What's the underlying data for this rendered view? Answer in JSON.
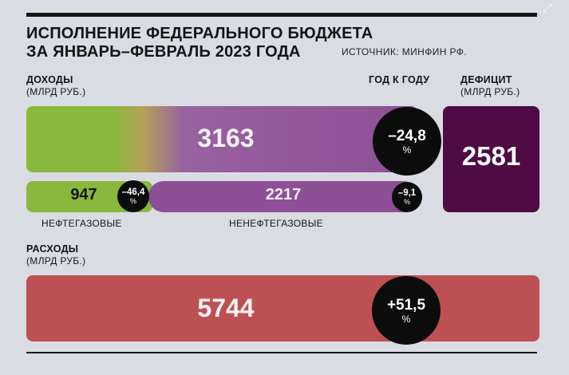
{
  "header": {
    "title_line1": "ИСПОЛНЕНИЕ ФЕДЕРАЛЬНОГО БЮДЖЕТА",
    "title_line2": "ЗА ЯНВАРЬ–ФЕВРАЛЬ 2023 ГОДА",
    "source": "ИСТОЧНИК:  МИНФИН РФ."
  },
  "labels": {
    "income_title": "ДОХОДЫ",
    "income_unit": "(МЛРД РУБ.)",
    "yoy": "ГОД К ГОДУ",
    "deficit_title": "ДЕФИЦИТ",
    "deficit_unit": "(МЛРД РУБ.)",
    "expenses_title": "РАСХОДЫ",
    "expenses_unit": "(МЛРД РУБ.)",
    "oil_gas": "НЕФТЕГАЗОВЫЕ",
    "non_oil_gas": "НЕНЕФТЕГАЗОВЫЕ",
    "percent_sign": "%"
  },
  "chart_data": {
    "type": "bar",
    "unit": "МЛРД РУБ.",
    "income": {
      "total": {
        "value": "3163",
        "yoy": "–24,8"
      },
      "oil_gas": {
        "value": "947",
        "yoy": "–46,4"
      },
      "non_oil_gas": {
        "value": "2217",
        "yoy": "–9,1"
      }
    },
    "deficit": {
      "value": "2581"
    },
    "expenses": {
      "value": "5744",
      "yoy": "+51,5"
    }
  },
  "colors": {
    "oil_gas": "#89b83c",
    "non_oil_gas": "#8d4f95",
    "deficit": "#4e0b44",
    "expenses": "#bd5052",
    "background": "#d9dde3"
  },
  "icons": {
    "corner": "expand-icon"
  }
}
